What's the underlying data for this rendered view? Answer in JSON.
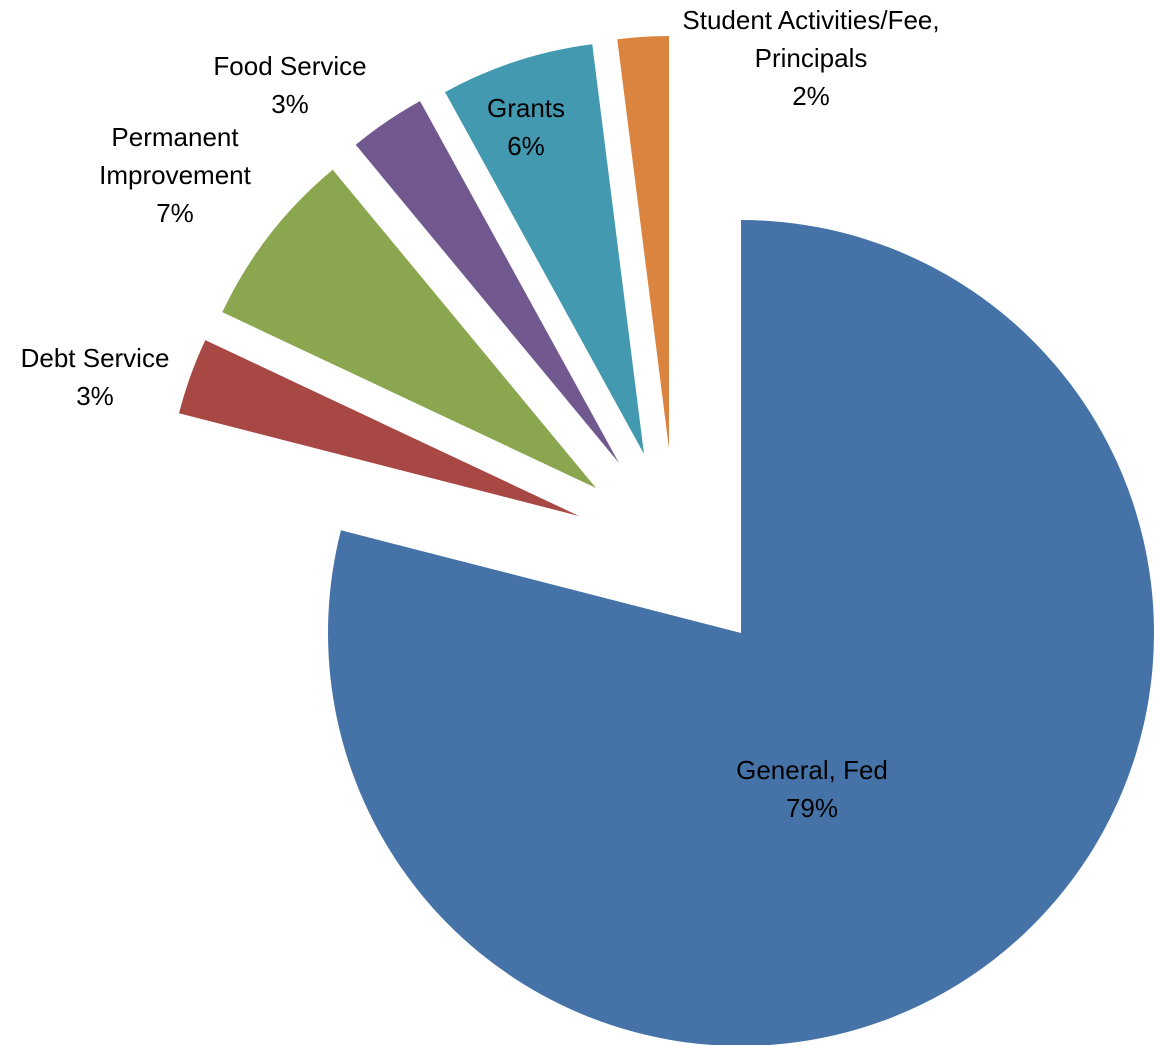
{
  "chart_data": {
    "type": "pie",
    "exploded": true,
    "legend": "none",
    "slices": [
      {
        "label": "General, Fed",
        "percent_label": "79%",
        "value": 79,
        "color": "#4573A8"
      },
      {
        "label": "Debt Service",
        "percent_label": "3%",
        "value": 3,
        "color": "#A84845"
      },
      {
        "label": "Permanent Improvement",
        "percent_label": "7%",
        "value": 7,
        "color": "#8AA64F"
      },
      {
        "label": "Food Service",
        "percent_label": "3%",
        "value": 3,
        "color": "#71598F"
      },
      {
        "label": "Grants",
        "percent_label": "6%",
        "value": 6,
        "color": "#4299B0"
      },
      {
        "label": "Student Activities/Fee, Principals",
        "percent_label": "2%",
        "value": 2,
        "color": "#DB8440"
      }
    ]
  }
}
